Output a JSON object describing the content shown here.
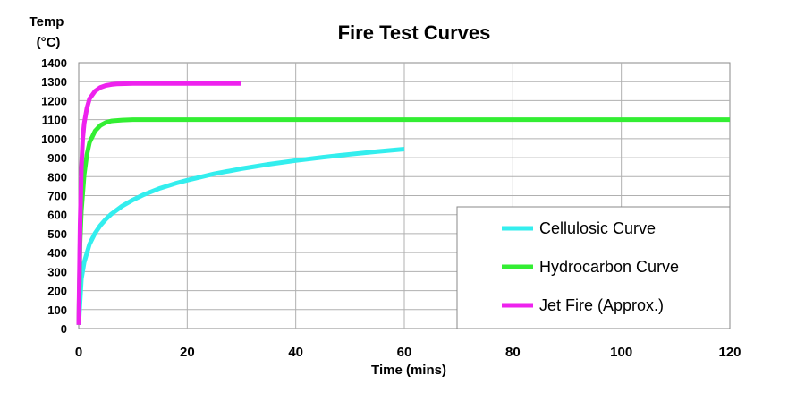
{
  "chart_data": {
    "type": "line",
    "title": "Fire Test Curves",
    "xlabel": "Time (mins)",
    "ylabel_lines": [
      "Temp",
      "(°C)"
    ],
    "xlim": [
      0,
      120
    ],
    "ylim": [
      0,
      1400
    ],
    "x_ticks": [
      0,
      20,
      40,
      60,
      80,
      100,
      120
    ],
    "y_ticks": [
      0,
      100,
      200,
      300,
      400,
      500,
      600,
      700,
      800,
      900,
      1000,
      1100,
      1200,
      1300,
      1400
    ],
    "grid": true,
    "legend_position": "bottom-right",
    "series": [
      {
        "name": "Cellulosic Curve",
        "color": "#33eeee",
        "points": [
          [
            0,
            20
          ],
          [
            0.5,
            261
          ],
          [
            1,
            349
          ],
          [
            2,
            445
          ],
          [
            3,
            502
          ],
          [
            4,
            544
          ],
          [
            5,
            576
          ],
          [
            6,
            603
          ],
          [
            8,
            645
          ],
          [
            10,
            678
          ],
          [
            12,
            705
          ],
          [
            15,
            739
          ],
          [
            18,
            766
          ],
          [
            20,
            781
          ],
          [
            25,
            815
          ],
          [
            30,
            842
          ],
          [
            35,
            865
          ],
          [
            40,
            885
          ],
          [
            45,
            902
          ],
          [
            50,
            918
          ],
          [
            55,
            932
          ],
          [
            60,
            945
          ]
        ]
      },
      {
        "name": "Hydrocarbon Curve",
        "color": "#33ee33",
        "points": [
          [
            0,
            20
          ],
          [
            0.25,
            450
          ],
          [
            0.5,
            620
          ],
          [
            1,
            810
          ],
          [
            1.5,
            915
          ],
          [
            2,
            980
          ],
          [
            3,
            1040
          ],
          [
            4,
            1070
          ],
          [
            5,
            1085
          ],
          [
            6,
            1093
          ],
          [
            8,
            1098
          ],
          [
            10,
            1100
          ],
          [
            120,
            1100
          ]
        ]
      },
      {
        "name": "Jet Fire (Approx.)",
        "color": "#ee22ee",
        "points": [
          [
            0,
            20
          ],
          [
            0.25,
            550
          ],
          [
            0.5,
            850
          ],
          [
            0.75,
            1000
          ],
          [
            1,
            1080
          ],
          [
            1.5,
            1160
          ],
          [
            2,
            1210
          ],
          [
            3,
            1250
          ],
          [
            4,
            1270
          ],
          [
            5,
            1280
          ],
          [
            6,
            1285
          ],
          [
            7,
            1288
          ],
          [
            10,
            1290
          ],
          [
            30,
            1290
          ]
        ]
      }
    ]
  }
}
